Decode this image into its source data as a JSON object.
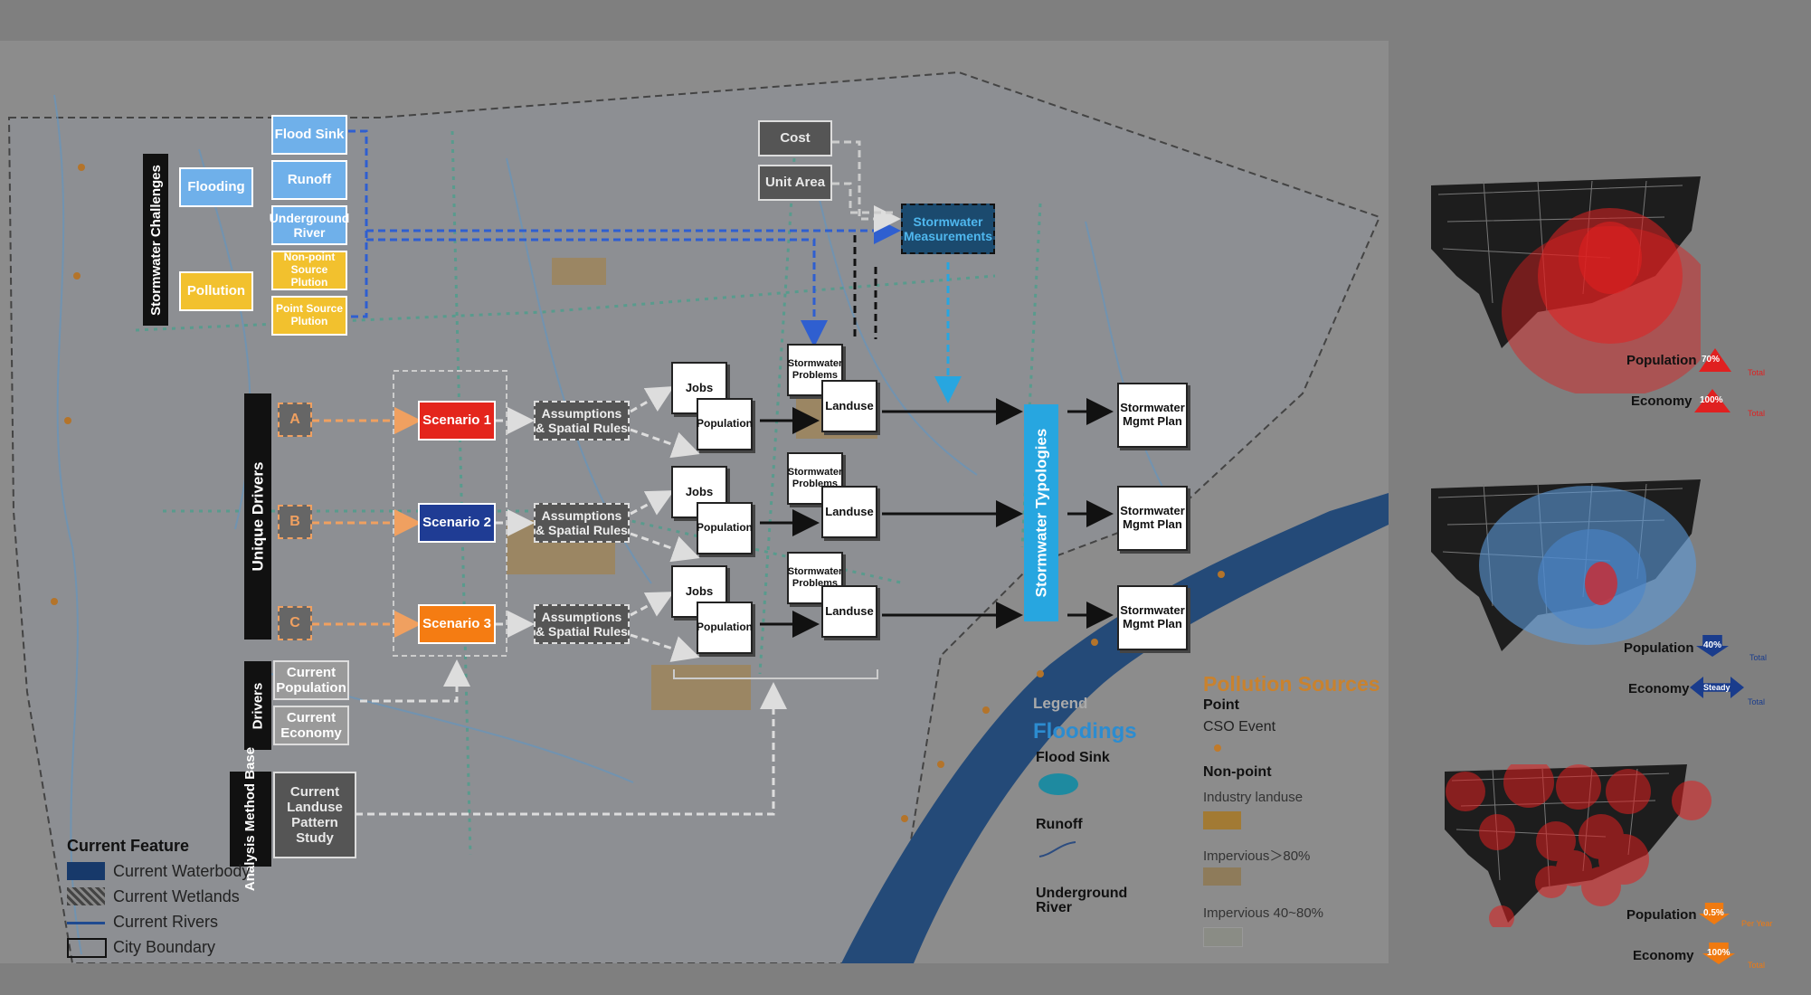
{
  "challenges": {
    "title": "Stormwater Challenges",
    "flooding": "Flooding",
    "pollution": "Pollution",
    "flood_sink": "Flood Sink",
    "runoff": "Runoff",
    "underground_river": "Underground River",
    "nonpoint": "Non-point Source Plution",
    "point": "Point Source Plution"
  },
  "measure": {
    "cost": "Cost",
    "unit_area": "Unit Area",
    "stormwater_measurements": "Stormwater Measurements"
  },
  "drivers": {
    "unique_title": "Unique Drivers",
    "a": "A",
    "b": "B",
    "c": "C",
    "scenario1": "Scenario 1",
    "scenario2": "Scenario 2",
    "scenario3": "Scenario 3",
    "assumptions": "Assumptions & Spatial Rules",
    "drivers_title": "Drivers",
    "current_population": "Current Population",
    "current_economy": "Current Economy"
  },
  "flow": {
    "jobs": "Jobs",
    "population": "Population",
    "stormwater_problems": "Stormwater Problems",
    "landuse": "Landuse",
    "typologies": "Stormwater Typologies",
    "mgmt_plan": "Stormwater Mgmt Plan"
  },
  "analysis": {
    "title": "Analysis Method Base",
    "study": "Current Landuse Pattern Study"
  },
  "legend": {
    "title": "Legend",
    "floodings": "Floodings",
    "flood_sink": "Flood Sink",
    "runoff": "Runoff",
    "underground_river": "Underground River",
    "pollution_sources": "Pollution Sources",
    "point": "Point",
    "cso_event": "CSO Event",
    "nonpoint": "Non-point",
    "industry": "Industry landuse",
    "imp80": "Impervious＞80%",
    "imp40": "Impervious 40~80%"
  },
  "current_feature": {
    "title": "Current Feature",
    "waterbody": "Current Waterbody",
    "wetlands": "Current Wetlands",
    "rivers": "Current Rivers",
    "boundary": "City Boundary"
  },
  "scenarios": [
    {
      "population": "Population",
      "pop_value": "70%",
      "economy": "Economy",
      "eco_value": "100%",
      "total": "Total",
      "color": "#e02020"
    },
    {
      "population": "Population",
      "pop_value": "40%",
      "economy": "Economy",
      "eco_value": "Steady",
      "total": "Total",
      "color": "#1a3c8c"
    },
    {
      "population": "Population",
      "pop_value": "0.5%",
      "pop_total": "Per Year",
      "economy": "Economy",
      "eco_value": "100%",
      "total": "Total",
      "color": "#f07a10"
    }
  ],
  "colors": {
    "flood_blue": "#6fb0ea",
    "pollution_yellow": "#f2c12e",
    "scenario1": "#e4251c",
    "scenario2": "#1f3c94",
    "scenario3": "#f57c12",
    "typology": "#27a6e0"
  }
}
